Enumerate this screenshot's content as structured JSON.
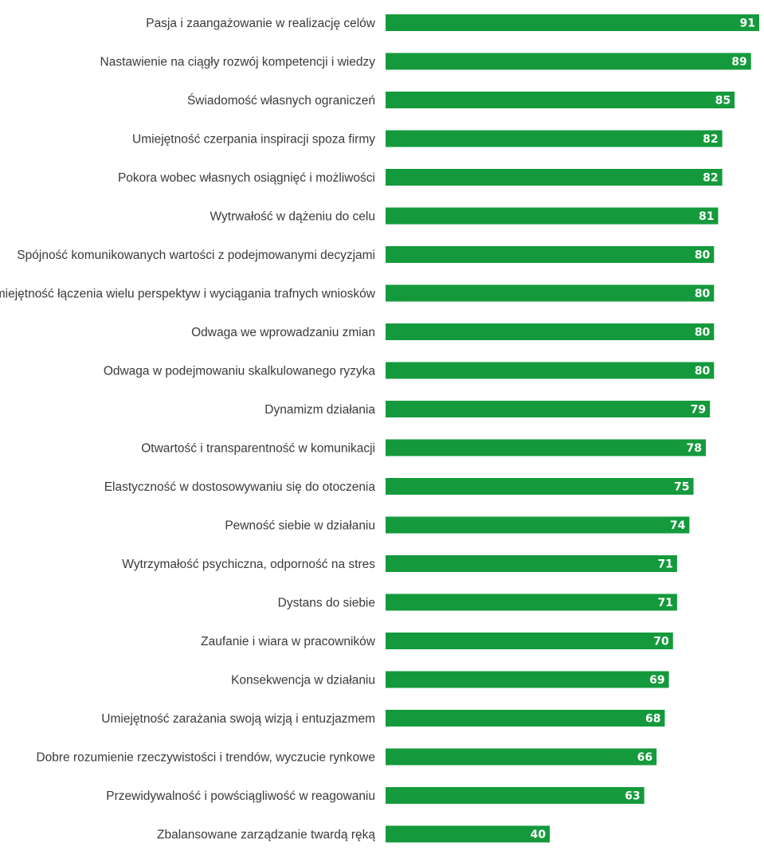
{
  "chart_data": {
    "type": "bar",
    "orientation": "horizontal",
    "categories": [
      "Pasja i zaangażowanie w realizację celów",
      "Nastawienie na ciągły rozwój kompetencji i wiedzy",
      "Świadomość własnych ograniczeń",
      "Umiejętność czerpania inspiracji spoza firmy",
      "Pokora wobec własnych osiągnięć i możliwości",
      "Wytrwałość w dążeniu do celu",
      "Spójność komunikowanych wartości z podejmowanymi decyzjami",
      "Umiejętność łączenia wielu perspektyw i wyciągania trafnych wniosków",
      "Odwaga we wprowadzaniu zmian",
      "Odwaga w podejmowaniu skalkulowanego ryzyka",
      "Dynamizm działania",
      "Otwartość i transparentność w komunikacji",
      "Elastyczność w dostosowywaniu się do otoczenia",
      "Pewność siebie w działaniu",
      "Wytrzymałość psychiczna, odporność na stres",
      "Dystans do siebie",
      "Zaufanie i wiara w pracowników",
      "Konsekwencja w działaniu",
      "Umiejętność zarażania swoją wizją i entuzjazmem",
      "Dobre rozumienie rzeczywistości i trendów, wyczucie rynkowe",
      "Przewidywalność i powściągliwość w reagowaniu",
      "Zbalansowane zarządzanie twardą ręką"
    ],
    "values": [
      91,
      89,
      85,
      82,
      82,
      81,
      80,
      80,
      80,
      80,
      79,
      78,
      75,
      74,
      71,
      71,
      70,
      69,
      68,
      66,
      63,
      40
    ],
    "bar_color": "#149a3c",
    "value_label_color": "#ffffff",
    "xlim": [
      0,
      91
    ],
    "grid": false,
    "legend": "none",
    "title": "",
    "xlabel": "",
    "ylabel": ""
  }
}
